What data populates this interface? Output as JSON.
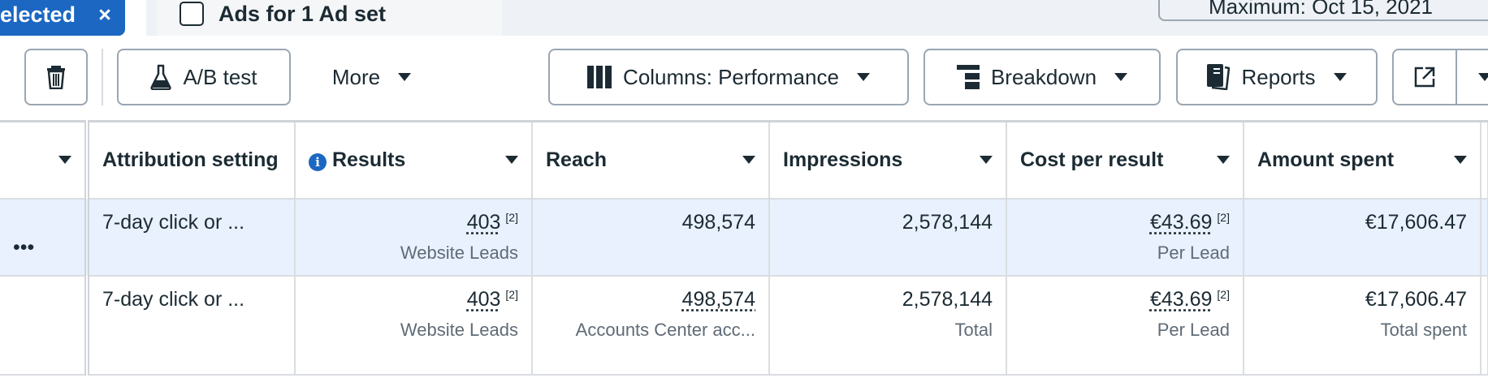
{
  "top": {
    "selected_label": "elected",
    "close_icon": "×",
    "tab_label": "Ads for 1 Ad set",
    "date_label": "Maximum: Oct 15, 2021"
  },
  "toolbar": {
    "ab_test": "A/B test",
    "more": "More",
    "columns": "Columns: Performance",
    "breakdown": "Breakdown",
    "reports": "Reports"
  },
  "table": {
    "headers": [
      "Attribution setting",
      "Results",
      "Reach",
      "Impressions",
      "Cost per result",
      "Amount spent"
    ],
    "rows": [
      {
        "more": "•••",
        "attribution": "7-day click or ...",
        "results": "403",
        "results_note": "[2]",
        "results_sub": "Website Leads",
        "reach": "498,574",
        "reach_sub": "",
        "impressions": "2,578,144",
        "impressions_sub": "",
        "cpr": "€43.69",
        "cpr_note": "[2]",
        "cpr_sub": "Per Lead",
        "spent": "€17,606.47",
        "spent_sub": ""
      },
      {
        "more": "",
        "attribution": "7-day click or ...",
        "results": "403",
        "results_note": "[2]",
        "results_sub": "Website Leads",
        "reach": "498,574",
        "reach_sub": "Accounts Center acc...",
        "impressions": "2,578,144",
        "impressions_sub": "Total",
        "cpr": "€43.69",
        "cpr_note": "[2]",
        "cpr_sub": "Per Lead",
        "spent": "€17,606.47",
        "spent_sub": "Total spent"
      }
    ]
  },
  "colors": {
    "accent": "#1b67c2",
    "selected_row": "#e8f1fd"
  }
}
